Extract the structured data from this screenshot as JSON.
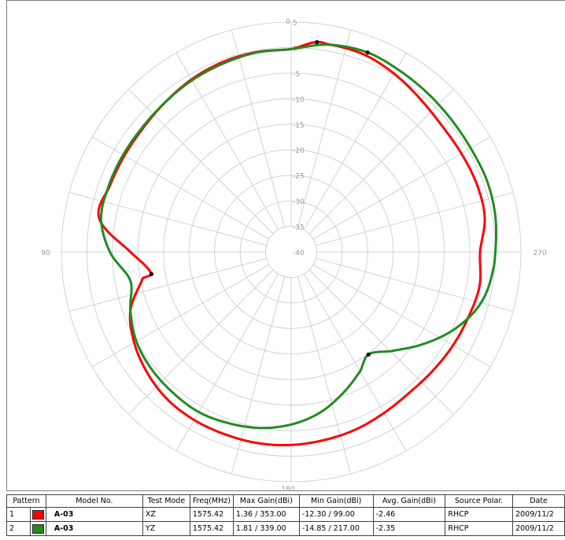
{
  "chart_data": {
    "type": "polar-line",
    "rlim": [
      -40,
      5
    ],
    "rings": [
      5,
      0,
      -5,
      -10,
      -15,
      -20,
      -25,
      -30,
      -35,
      -40
    ],
    "angle_labels": [
      {
        "angle": 0,
        "text": "0"
      },
      {
        "angle": 90,
        "text": "90"
      },
      {
        "angle": 180,
        "text": "180"
      },
      {
        "angle": 270,
        "text": "270"
      }
    ],
    "spoke_step_deg": 15,
    "grid": true,
    "series": [
      {
        "color": "#ff0000",
        "points": [
          [
            0,
            -0.3
          ],
          [
            10,
            -0.3
          ],
          [
            20,
            -0.5
          ],
          [
            30,
            -1
          ],
          [
            40,
            -1.7
          ],
          [
            50,
            -2.2
          ],
          [
            60,
            -2.3
          ],
          [
            70,
            -2.2
          ],
          [
            80,
            -1.8
          ],
          [
            90,
            -8.5
          ],
          [
            99,
            -12.3
          ],
          [
            100,
            -10.5
          ],
          [
            110,
            -6.5
          ],
          [
            120,
            -4.5
          ],
          [
            130,
            -3.2
          ],
          [
            140,
            -2.3
          ],
          [
            150,
            -2
          ],
          [
            160,
            -2
          ],
          [
            170,
            -2
          ],
          [
            180,
            -2.2
          ],
          [
            190,
            -2.6
          ],
          [
            200,
            -3
          ],
          [
            210,
            -3.6
          ],
          [
            220,
            -4
          ],
          [
            230,
            -3.8
          ],
          [
            240,
            -3.4
          ],
          [
            250,
            -3
          ],
          [
            260,
            -2.5
          ],
          [
            270,
            -3
          ],
          [
            280,
            -1.5
          ],
          [
            290,
            -1.3
          ],
          [
            300,
            -1.5
          ],
          [
            310,
            -1.5
          ],
          [
            320,
            -0.8
          ],
          [
            330,
            0.3
          ],
          [
            340,
            1.2
          ],
          [
            350,
            1.3
          ],
          [
            353,
            1.36
          ]
        ]
      },
      {
        "color": "#228b22",
        "points": [
          [
            0,
            -0.3
          ],
          [
            10,
            -0.4
          ],
          [
            20,
            -0.8
          ],
          [
            30,
            -1.2
          ],
          [
            40,
            -1.7
          ],
          [
            50,
            -2
          ],
          [
            60,
            -2
          ],
          [
            70,
            -2
          ],
          [
            80,
            -2.2
          ],
          [
            90,
            -4.5
          ],
          [
            100,
            -8
          ],
          [
            110,
            -6.5
          ],
          [
            120,
            -5
          ],
          [
            130,
            -4.3
          ],
          [
            140,
            -4
          ],
          [
            150,
            -3.8
          ],
          [
            160,
            -4.3
          ],
          [
            170,
            -5
          ],
          [
            180,
            -6.2
          ],
          [
            190,
            -8
          ],
          [
            200,
            -10.5
          ],
          [
            210,
            -13
          ],
          [
            217,
            -14.85
          ],
          [
            225,
            -12.5
          ],
          [
            235,
            -8.5
          ],
          [
            245,
            -4.5
          ],
          [
            255,
            -1.5
          ],
          [
            265,
            -0.3
          ],
          [
            270,
            0
          ],
          [
            280,
            0.6
          ],
          [
            290,
            0.8
          ],
          [
            300,
            0.6
          ],
          [
            310,
            0.7
          ],
          [
            320,
            1
          ],
          [
            330,
            1.4
          ],
          [
            339,
            1.81
          ],
          [
            350,
            1.2
          ]
        ]
      }
    ],
    "marker_color": "#000000",
    "markers": [
      {
        "angle": 353,
        "value": 1.36
      },
      {
        "angle": 99,
        "value": -12.3
      },
      {
        "angle": 339,
        "value": 1.81
      },
      {
        "angle": 217,
        "value": -14.85
      }
    ]
  },
  "table": {
    "headers": [
      "Pattern",
      "Model No.",
      "Test Mode",
      "Freq(MHz)",
      "Max Gain(dBi)",
      "Min Gain(dBi)",
      "Avg. Gain(dBi)",
      "Source Polar.",
      "Date"
    ],
    "rows": [
      {
        "pattern": "1",
        "color": "#ff0000",
        "model": "A-03",
        "mode": "XZ",
        "freq": "1575.42",
        "max": "1.36 / 353.00",
        "min": "-12.30 / 99.00",
        "avg": "-2.46",
        "polar": "RHCP",
        "date": "2009/11/2"
      },
      {
        "pattern": "2",
        "color": "#228b22",
        "model": "A-03",
        "mode": "YZ",
        "freq": "1575.42",
        "max": "1.81 / 339.00",
        "min": "-14.85 / 217.00",
        "avg": "-2.35",
        "polar": "RHCP",
        "date": "2009/11/2"
      }
    ]
  }
}
